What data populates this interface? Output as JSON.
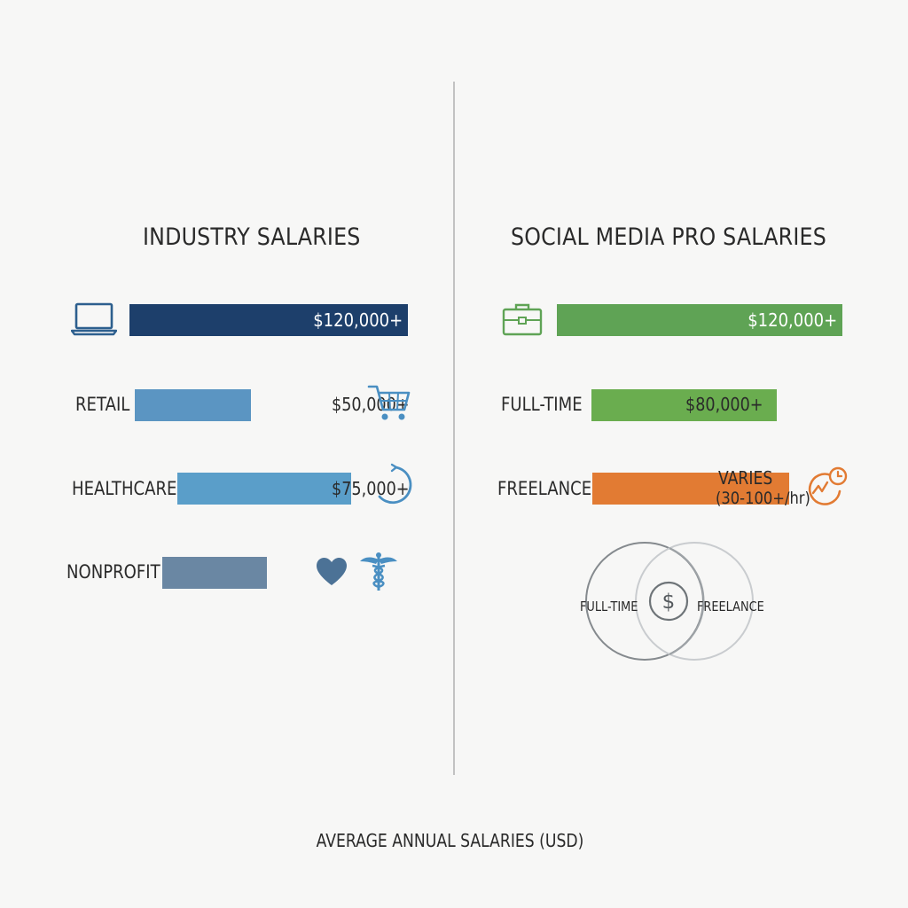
{
  "footer": "AVERAGE ANNUAL SALARIES (USD)",
  "chart_data": [
    {
      "type": "bar",
      "orientation": "horizontal",
      "title": "INDUSTRY SALARIES",
      "categories": [
        "",
        "RETAIL",
        "HEALTHCARE",
        "NONPROFIT"
      ],
      "values": [
        120000,
        50000,
        75000,
        45000
      ],
      "value_labels": [
        "$120,000+",
        "$50,000+",
        "$75,000+",
        ""
      ],
      "colors": [
        "#1d3f6b",
        "#5b95c2",
        "#5a9ec9",
        "#6a87a3"
      ],
      "icons": [
        "laptop-icon",
        "shopping-cart-icon",
        "progress-circle-icon",
        "heart-icon",
        "caduceus-icon"
      ]
    },
    {
      "type": "bar",
      "orientation": "horizontal",
      "title": "SOCIAL MEDIA PRO SALARIES",
      "categories": [
        "",
        "FULL-TIME",
        "FREELANCE"
      ],
      "values": [
        120000,
        80000,
        85000
      ],
      "value_labels": [
        "$120,000+",
        "$80,000+",
        ""
      ],
      "notes": {
        "freelance_line1": "VARIES",
        "freelance_line2": "(30-100+/hr)"
      },
      "colors": [
        "#5fa355",
        "#6aad4f",
        "#e27b33"
      ],
      "icons": [
        "briefcase-icon",
        "clock-chart-icon",
        "dollar-icon"
      ],
      "venn": {
        "left": "FULL-TIME",
        "right": "FREELANCE",
        "center_symbol": "$"
      }
    }
  ]
}
